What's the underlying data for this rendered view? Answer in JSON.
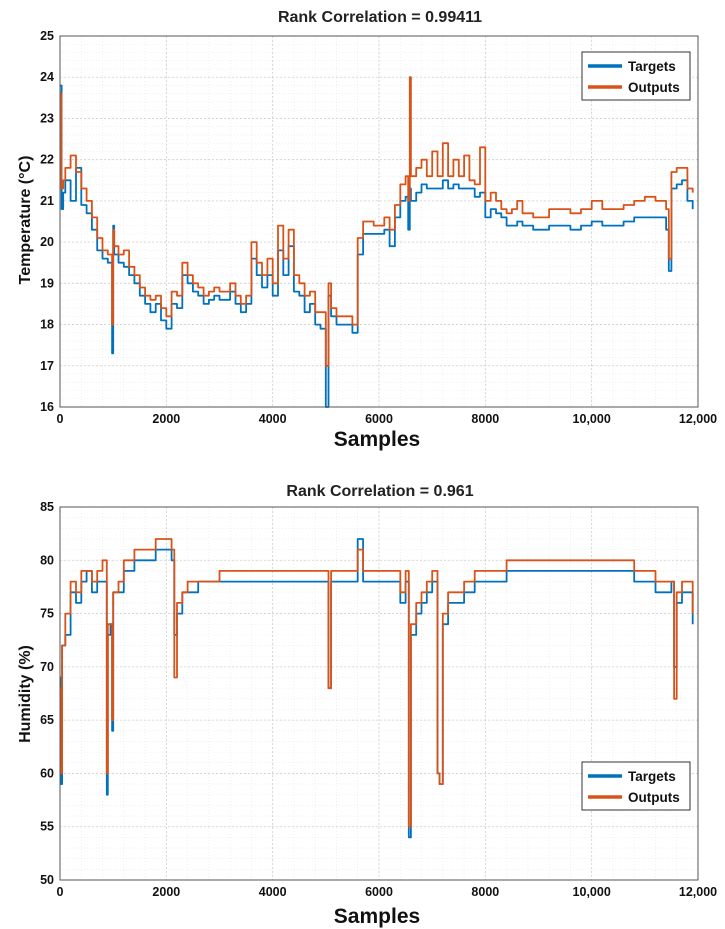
{
  "chart_data": [
    {
      "type": "line",
      "title": "Rank Correlation = 0.99411",
      "xlabel": "Samples",
      "ylabel": "Temperature (°C)",
      "xlim": [
        0,
        12000
      ],
      "ylim": [
        16,
        25
      ],
      "x_ticks": [
        0,
        2000,
        4000,
        6000,
        8000,
        10000,
        12000
      ],
      "x_tick_labels": [
        "0",
        "2000",
        "4000",
        "6000",
        "8000",
        "10,000",
        "12,000"
      ],
      "y_ticks": [
        16,
        17,
        18,
        19,
        20,
        21,
        22,
        23,
        24,
        25
      ],
      "y_tick_labels": [
        "16",
        "17",
        "18",
        "19",
        "20",
        "21",
        "22",
        "23",
        "24",
        "25"
      ],
      "grid": true,
      "legend": {
        "placement": "top-right",
        "entries": [
          "Targets",
          "Outputs"
        ]
      },
      "series": [
        {
          "name": "Targets",
          "color": "#0072BD",
          "x": [
            0,
            30,
            60,
            100,
            200,
            300,
            400,
            500,
            600,
            700,
            800,
            900,
            980,
            1000,
            1020,
            1100,
            1200,
            1300,
            1400,
            1500,
            1600,
            1700,
            1800,
            1900,
            2000,
            2100,
            2200,
            2300,
            2400,
            2500,
            2600,
            2700,
            2800,
            2900,
            3000,
            3100,
            3200,
            3300,
            3400,
            3500,
            3600,
            3700,
            3800,
            3900,
            4000,
            4100,
            4200,
            4300,
            4400,
            4500,
            4600,
            4700,
            4800,
            4900,
            5000,
            5050,
            5100,
            5200,
            5300,
            5400,
            5500,
            5600,
            5700,
            5800,
            5900,
            6000,
            6100,
            6200,
            6300,
            6400,
            6500,
            6550,
            6580,
            6600,
            6700,
            6800,
            6900,
            7000,
            7100,
            7200,
            7300,
            7400,
            7500,
            7600,
            7700,
            7800,
            7900,
            8000,
            8100,
            8200,
            8300,
            8400,
            8500,
            8600,
            8700,
            8800,
            8900,
            9000,
            9200,
            9400,
            9600,
            9800,
            10000,
            10200,
            10400,
            10600,
            10800,
            11000,
            11200,
            11400,
            11450,
            11500,
            11600,
            11700,
            11800,
            11900
          ],
          "y": [
            23.8,
            20.8,
            21.2,
            21.5,
            21.0,
            21.8,
            20.9,
            20.7,
            20.3,
            19.8,
            19.6,
            19.5,
            17.3,
            20.4,
            19.7,
            19.5,
            19.4,
            19.2,
            19.0,
            18.7,
            18.5,
            18.3,
            18.5,
            18.1,
            17.9,
            18.5,
            18.4,
            19.2,
            19.0,
            18.8,
            18.7,
            18.5,
            18.6,
            18.7,
            18.6,
            18.6,
            18.8,
            18.5,
            18.3,
            18.5,
            19.6,
            19.2,
            18.9,
            19.2,
            18.7,
            19.8,
            19.2,
            19.9,
            18.8,
            18.7,
            18.3,
            18.5,
            18.0,
            17.9,
            16.0,
            18.7,
            18.2,
            18.0,
            18.0,
            18.0,
            17.8,
            19.7,
            20.2,
            20.2,
            20.2,
            20.2,
            20.3,
            19.9,
            20.6,
            21.0,
            21.1,
            20.3,
            21.3,
            21.0,
            21.2,
            21.4,
            21.3,
            21.3,
            21.3,
            21.5,
            21.3,
            21.4,
            21.3,
            21.3,
            21.3,
            21.1,
            21.2,
            20.6,
            20.8,
            20.7,
            20.6,
            20.4,
            20.4,
            20.5,
            20.4,
            20.4,
            20.3,
            20.3,
            20.4,
            20.4,
            20.3,
            20.4,
            20.5,
            20.4,
            20.4,
            20.5,
            20.6,
            20.6,
            20.6,
            20.3,
            19.3,
            21.3,
            21.4,
            21.5,
            21.0,
            20.8
          ]
        },
        {
          "name": "Outputs",
          "color": "#D95319",
          "x": [
            0,
            30,
            60,
            100,
            200,
            300,
            400,
            500,
            600,
            700,
            800,
            900,
            980,
            1000,
            1020,
            1100,
            1200,
            1300,
            1400,
            1500,
            1600,
            1700,
            1800,
            1900,
            2000,
            2100,
            2200,
            2300,
            2400,
            2500,
            2600,
            2700,
            2800,
            2900,
            3000,
            3100,
            3200,
            3300,
            3400,
            3500,
            3600,
            3700,
            3800,
            3900,
            4000,
            4100,
            4200,
            4300,
            4400,
            4500,
            4600,
            4700,
            4800,
            4900,
            5000,
            5050,
            5100,
            5200,
            5300,
            5400,
            5500,
            5600,
            5700,
            5800,
            5900,
            6000,
            6100,
            6200,
            6300,
            6400,
            6500,
            6550,
            6580,
            6600,
            6700,
            6800,
            6900,
            7000,
            7100,
            7200,
            7300,
            7400,
            7500,
            7600,
            7700,
            7800,
            7900,
            8000,
            8100,
            8200,
            8300,
            8400,
            8500,
            8600,
            8700,
            8800,
            8900,
            9000,
            9200,
            9400,
            9600,
            9800,
            10000,
            10200,
            10400,
            10600,
            10800,
            11000,
            11200,
            11400,
            11450,
            11500,
            11600,
            11700,
            11800,
            11900
          ],
          "y": [
            23.6,
            21.3,
            21.5,
            21.8,
            22.1,
            21.7,
            21.3,
            21.0,
            20.6,
            20.1,
            19.8,
            19.7,
            18.0,
            20.3,
            19.9,
            19.7,
            19.8,
            19.4,
            19.2,
            18.9,
            18.7,
            18.6,
            18.7,
            18.4,
            18.2,
            18.8,
            18.7,
            19.5,
            19.2,
            19.0,
            18.9,
            18.7,
            18.8,
            18.9,
            18.8,
            18.8,
            19.0,
            18.7,
            18.5,
            18.7,
            20.0,
            19.5,
            19.2,
            19.6,
            19.0,
            20.4,
            19.6,
            20.3,
            19.2,
            19.0,
            18.7,
            18.8,
            18.3,
            18.3,
            17.0,
            19.0,
            18.4,
            18.2,
            18.2,
            18.2,
            18.0,
            20.1,
            20.5,
            20.5,
            20.4,
            20.4,
            20.6,
            20.3,
            20.9,
            21.4,
            21.6,
            21.0,
            24.0,
            21.6,
            21.8,
            22.0,
            21.6,
            22.2,
            21.6,
            22.4,
            21.6,
            22.0,
            21.6,
            22.1,
            21.5,
            21.4,
            22.3,
            21.0,
            21.2,
            21.0,
            20.8,
            20.7,
            20.8,
            21.0,
            20.7,
            20.7,
            20.6,
            20.6,
            20.8,
            20.8,
            20.7,
            20.8,
            21.0,
            20.8,
            20.8,
            20.9,
            21.0,
            21.1,
            21.0,
            20.8,
            19.6,
            21.7,
            21.8,
            21.8,
            21.3,
            21.2
          ]
        }
      ]
    },
    {
      "type": "line",
      "title": "Rank Correlation = 0.961",
      "xlabel": "Samples",
      "ylabel": "Humidity (%)",
      "xlim": [
        0,
        12000
      ],
      "ylim": [
        50,
        85
      ],
      "x_ticks": [
        0,
        2000,
        4000,
        6000,
        8000,
        10000,
        12000
      ],
      "x_tick_labels": [
        "0",
        "2000",
        "4000",
        "6000",
        "8000",
        "10,000",
        "12,000"
      ],
      "y_ticks": [
        50,
        55,
        60,
        65,
        70,
        75,
        80,
        85
      ],
      "y_tick_labels": [
        "50",
        "55",
        "60",
        "65",
        "70",
        "75",
        "80",
        "85"
      ],
      "grid": true,
      "legend": {
        "placement": "right",
        "entries": [
          "Targets",
          "Outputs"
        ]
      },
      "series": [
        {
          "name": "Targets",
          "color": "#0072BD",
          "x": [
            0,
            20,
            40,
            60,
            100,
            200,
            300,
            400,
            500,
            600,
            700,
            800,
            850,
            880,
            900,
            950,
            980,
            1000,
            1100,
            1200,
            1400,
            1600,
            1800,
            1900,
            2000,
            2100,
            2150,
            2200,
            2300,
            2400,
            2600,
            2800,
            3000,
            3200,
            3400,
            3600,
            3800,
            4000,
            4200,
            4400,
            4600,
            4800,
            5000,
            5050,
            5100,
            5200,
            5400,
            5500,
            5600,
            5700,
            5800,
            6000,
            6200,
            6400,
            6500,
            6560,
            6580,
            6600,
            6700,
            6800,
            6900,
            7000,
            7100,
            7140,
            7200,
            7300,
            7400,
            7600,
            7800,
            8000,
            8200,
            8400,
            8600,
            8800,
            9000,
            9200,
            9400,
            9600,
            9800,
            10000,
            10200,
            10400,
            10600,
            10800,
            11000,
            11200,
            11400,
            11500,
            11550,
            11600,
            11700,
            11800,
            11900
          ],
          "y": [
            69,
            59,
            72,
            72,
            73,
            77,
            76,
            78,
            79,
            77,
            78,
            78,
            78,
            58,
            73,
            74,
            64,
            77,
            77,
            79,
            80,
            80,
            81,
            81,
            81,
            80,
            73,
            75,
            77,
            77,
            78,
            78,
            78,
            78,
            78,
            78,
            78,
            78,
            78,
            78,
            78,
            78,
            78,
            68,
            78,
            78,
            78,
            78,
            82,
            78,
            78,
            78,
            78,
            76,
            78,
            54,
            54,
            73,
            75,
            76,
            77,
            78,
            60,
            59,
            74,
            76,
            76,
            77,
            78,
            78,
            78,
            79,
            79,
            79,
            79,
            79,
            79,
            79,
            79,
            79,
            79,
            79,
            79,
            78,
            78,
            77,
            77,
            78,
            70,
            76,
            77,
            77,
            74
          ]
        },
        {
          "name": "Outputs",
          "color": "#D95319",
          "x": [
            0,
            20,
            40,
            60,
            100,
            200,
            300,
            400,
            500,
            600,
            700,
            800,
            850,
            880,
            900,
            950,
            980,
            1000,
            1100,
            1200,
            1400,
            1600,
            1800,
            1900,
            2000,
            2100,
            2150,
            2200,
            2300,
            2400,
            2600,
            2800,
            3000,
            3200,
            3400,
            3600,
            3800,
            4000,
            4200,
            4400,
            4600,
            4800,
            5000,
            5050,
            5100,
            5200,
            5400,
            5500,
            5600,
            5700,
            5800,
            6000,
            6200,
            6400,
            6500,
            6560,
            6580,
            6600,
            6700,
            6800,
            6900,
            7000,
            7100,
            7140,
            7200,
            7300,
            7400,
            7600,
            7800,
            8000,
            8200,
            8400,
            8600,
            8800,
            9000,
            9200,
            9400,
            9600,
            9800,
            10000,
            10200,
            10400,
            10600,
            10800,
            11000,
            11200,
            11400,
            11500,
            11550,
            11600,
            11700,
            11800,
            11900
          ],
          "y": [
            68,
            60,
            72,
            72,
            75,
            78,
            77,
            79,
            79,
            78,
            79,
            80,
            80,
            60,
            74,
            74,
            65,
            77,
            78,
            80,
            81,
            81,
            82,
            82,
            82,
            81,
            69,
            76,
            77,
            78,
            78,
            78,
            79,
            79,
            79,
            79,
            79,
            79,
            79,
            79,
            79,
            79,
            79,
            68,
            79,
            79,
            79,
            79,
            81,
            79,
            79,
            79,
            79,
            77,
            79,
            55,
            55,
            74,
            76,
            77,
            78,
            79,
            60,
            59,
            75,
            77,
            77,
            78,
            79,
            79,
            79,
            80,
            80,
            80,
            80,
            80,
            80,
            80,
            80,
            80,
            80,
            80,
            80,
            79,
            79,
            78,
            78,
            78,
            67,
            77,
            78,
            78,
            75
          ]
        }
      ]
    }
  ]
}
